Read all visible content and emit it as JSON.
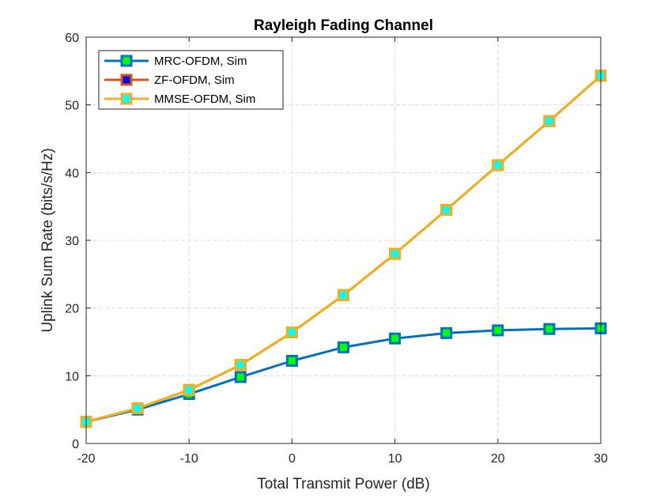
{
  "chart_data": {
    "type": "line",
    "title": "Rayleigh Fading Channel",
    "xlabel": "Total Transmit Power (dB)",
    "ylabel": "Uplink Sum Rate (bits/s/Hz)",
    "xlim": [
      -20,
      30
    ],
    "ylim": [
      0,
      60
    ],
    "xticks": [
      -20,
      -10,
      0,
      10,
      20,
      30
    ],
    "yticks": [
      0,
      10,
      20,
      30,
      40,
      50,
      60
    ],
    "grid": true,
    "legend_location": "top-left",
    "x": [
      -20,
      -15,
      -10,
      -5,
      0,
      5,
      10,
      15,
      20,
      25,
      30
    ],
    "series": [
      {
        "name": "MRC-OFDM, Sim",
        "color": "#0072BD",
        "marker_face": "#00FF00",
        "values": [
          3.2,
          5.0,
          7.3,
          9.8,
          12.2,
          14.2,
          15.5,
          16.3,
          16.7,
          16.9,
          17.0
        ]
      },
      {
        "name": "ZF-OFDM, Sim",
        "color": "#D95319",
        "marker_face": "#0000FF",
        "values": [
          3.2,
          5.2,
          7.9,
          11.6,
          16.4,
          21.9,
          28.0,
          34.5,
          41.1,
          47.6,
          54.3
        ]
      },
      {
        "name": "MMSE-OFDM, Sim",
        "color": "#EDB120",
        "marker_face": "#00FFFF",
        "values": [
          3.2,
          5.2,
          7.9,
          11.6,
          16.4,
          21.9,
          28.0,
          34.5,
          41.1,
          47.6,
          54.3
        ]
      }
    ]
  }
}
